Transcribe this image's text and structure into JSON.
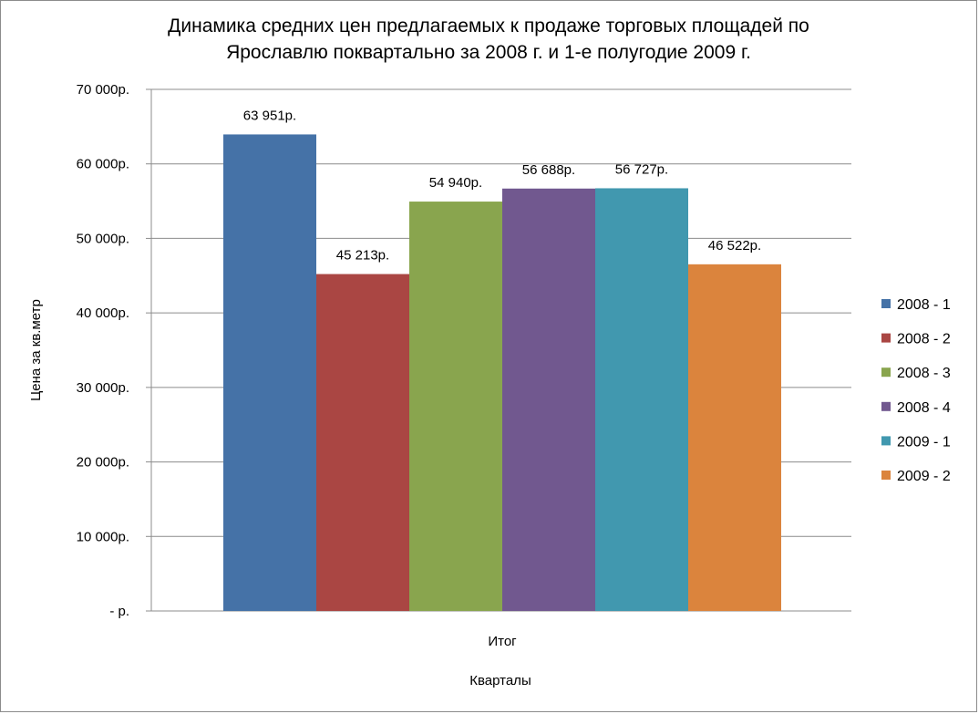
{
  "chart_data": {
    "type": "bar",
    "title_lines": [
      "Динамика средних цен предлагаемых к продаже торговых площадей по",
      "Ярославлю поквартально за 2008 г. и 1-е полугодие 2009 г."
    ],
    "categories": [
      "Итог"
    ],
    "xlabel": "Кварталы",
    "ylabel": "Цена за кв.метр",
    "ylim": [
      0,
      70000
    ],
    "y_ticks": [
      {
        "value": 0,
        "label": "-  р."
      },
      {
        "value": 10000,
        "label": "10 000р."
      },
      {
        "value": 20000,
        "label": "20 000р."
      },
      {
        "value": 30000,
        "label": "30 000р."
      },
      {
        "value": 40000,
        "label": "40 000р."
      },
      {
        "value": 50000,
        "label": "50 000р."
      },
      {
        "value": 60000,
        "label": "60 000р."
      },
      {
        "value": 70000,
        "label": "70 000р."
      }
    ],
    "grid": true,
    "legend_position": "right",
    "series": [
      {
        "name": "2008 - 1",
        "values": [
          63951
        ],
        "label": "63 951р.",
        "color": "#4572A7"
      },
      {
        "name": "2008 - 2",
        "values": [
          45213
        ],
        "label": "45 213р.",
        "color": "#AA4643"
      },
      {
        "name": "2008 - 3",
        "values": [
          54940
        ],
        "label": "54 940р.",
        "color": "#89A54E"
      },
      {
        "name": "2008 - 4",
        "values": [
          56688
        ],
        "label": "56 688р.",
        "color": "#71588F"
      },
      {
        "name": "2009 - 1",
        "values": [
          56727
        ],
        "label": "56 727р.",
        "color": "#4198AF"
      },
      {
        "name": "2009 - 2",
        "values": [
          46522
        ],
        "label": "46 522р.",
        "color": "#DB843D"
      }
    ]
  }
}
